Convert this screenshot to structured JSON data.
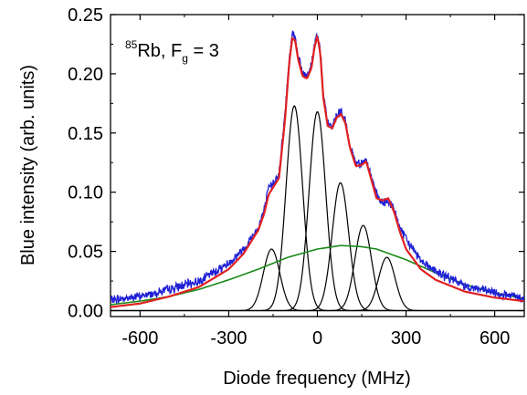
{
  "chart_data": {
    "type": "line",
    "xlabel": "Diode frequency (MHz)",
    "ylabel": "Blue intensity (arb. units)",
    "xlim": [
      -700,
      700
    ],
    "ylim": [
      -0.005,
      0.25
    ],
    "x_ticks": [
      -600,
      -300,
      0,
      300,
      600
    ],
    "y_ticks": [
      0.0,
      0.05,
      0.1,
      0.15,
      0.2,
      0.25
    ],
    "x_tick_labels": [
      "-600",
      "-300",
      "0",
      "300",
      "600"
    ],
    "y_tick_labels": [
      "0.00",
      "0.05",
      "0.10",
      "0.15",
      "0.20",
      "0.25"
    ],
    "annotation": {
      "sup": "85",
      "main": "Rb, F",
      "sub": "g",
      "tail": " = 3"
    },
    "grid": false,
    "series": [
      {
        "color": "#1f1fd6",
        "style": "noisy-data",
        "x": [
          -700,
          -600,
          -500,
          -400,
          -300,
          -250,
          -200,
          -180,
          -165,
          -150,
          -130,
          -110,
          -95,
          -85,
          -75,
          -65,
          -50,
          -35,
          -20,
          -10,
          0,
          10,
          20,
          35,
          50,
          65,
          80,
          95,
          110,
          130,
          150,
          165,
          180,
          200,
          220,
          240,
          260,
          280,
          300,
          350,
          400,
          500,
          600,
          700
        ],
        "y": [
          0.009,
          0.012,
          0.018,
          0.025,
          0.04,
          0.052,
          0.07,
          0.085,
          0.103,
          0.108,
          0.115,
          0.165,
          0.215,
          0.235,
          0.23,
          0.215,
          0.2,
          0.198,
          0.208,
          0.225,
          0.235,
          0.22,
          0.182,
          0.158,
          0.155,
          0.165,
          0.168,
          0.16,
          0.14,
          0.125,
          0.125,
          0.127,
          0.115,
          0.098,
          0.09,
          0.093,
          0.085,
          0.07,
          0.06,
          0.043,
          0.033,
          0.021,
          0.015,
          0.01
        ]
      },
      {
        "color": "#e02020",
        "style": "fit",
        "x": [
          -700,
          -600,
          -500,
          -400,
          -300,
          -250,
          -200,
          -180,
          -165,
          -150,
          -130,
          -110,
          -95,
          -85,
          -75,
          -65,
          -50,
          -35,
          -20,
          -10,
          0,
          10,
          20,
          35,
          50,
          65,
          80,
          95,
          110,
          130,
          150,
          165,
          180,
          200,
          220,
          240,
          260,
          280,
          300,
          350,
          400,
          500,
          600,
          700
        ],
        "y": [
          0.003,
          0.006,
          0.012,
          0.02,
          0.035,
          0.048,
          0.068,
          0.082,
          0.098,
          0.104,
          0.112,
          0.16,
          0.21,
          0.23,
          0.228,
          0.212,
          0.198,
          0.196,
          0.205,
          0.222,
          0.232,
          0.217,
          0.18,
          0.156,
          0.154,
          0.163,
          0.166,
          0.158,
          0.138,
          0.122,
          0.123,
          0.126,
          0.113,
          0.095,
          0.093,
          0.095,
          0.083,
          0.066,
          0.052,
          0.035,
          0.026,
          0.016,
          0.011,
          0.008
        ]
      },
      {
        "color": "#1a8a1a",
        "style": "background",
        "x": [
          -700,
          -600,
          -500,
          -400,
          -300,
          -200,
          -100,
          0,
          80,
          150,
          200,
          300,
          400,
          500,
          600,
          700
        ],
        "y": [
          0.005,
          0.008,
          0.012,
          0.018,
          0.026,
          0.035,
          0.045,
          0.052,
          0.055,
          0.054,
          0.052,
          0.043,
          0.032,
          0.022,
          0.015,
          0.01
        ]
      },
      {
        "color": "#000000",
        "style": "component-peaks",
        "x": [
          -155,
          -78,
          0,
          78,
          155,
          235
        ],
        "y": [
          0.052,
          0.173,
          0.168,
          0.108,
          0.072,
          0.045
        ]
      }
    ]
  }
}
